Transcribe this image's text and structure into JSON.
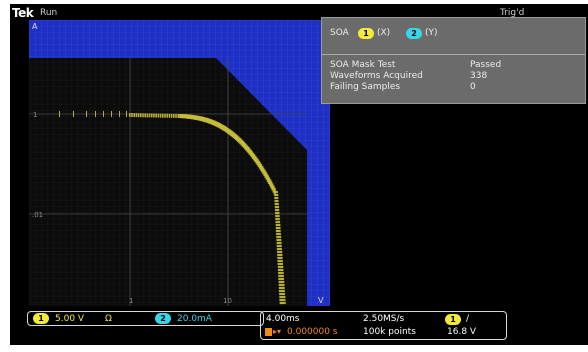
{
  "header": {
    "brand": "Tek",
    "acq_state": "Run",
    "trigger_status": "Trig'd"
  },
  "plot": {
    "top_left_marker": "A",
    "bottom_right_marker": "V",
    "y_labels": [
      "1",
      ".01"
    ],
    "x_labels": [
      "1",
      "10"
    ]
  },
  "info_panel": {
    "title": "SOA",
    "ch1_number": "1",
    "ch1_axis": "(X)",
    "ch2_number": "2",
    "ch2_axis": "(Y)",
    "rows": [
      {
        "label": "SOA Mask Test",
        "value": "Passed"
      },
      {
        "label": "Waveforms Acquired",
        "value": "338"
      },
      {
        "label": "Failing Samples",
        "value": "0"
      }
    ]
  },
  "bottom_bar": {
    "ch1_number": "1",
    "ch1_scale": "5.00 V",
    "ch1_coupling_icon": "Ω",
    "ch2_number": "2",
    "ch2_scale": "20.0mA",
    "horizontal_scale": "4.00ms",
    "sample_rate": "2.50MS/s",
    "trigger_position": "0.000000 s",
    "record_length": "100k points",
    "trigger_source": "1",
    "trigger_slope_icon": "/",
    "trigger_level": "16.8 V"
  },
  "colors": {
    "mask": "#1e2fc4",
    "trace": "#c9c03a",
    "ch1": "#f2ea3a",
    "ch2": "#36d6e6",
    "trigger": "#f08a18"
  }
}
